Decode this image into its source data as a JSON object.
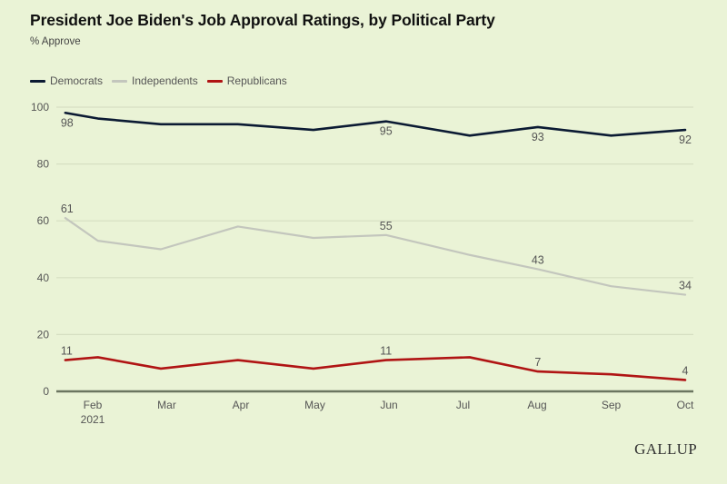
{
  "chart_data": {
    "type": "line",
    "title": "President Joe Biden's Job Approval Ratings, by Political Party",
    "subtitle": "% Approve",
    "xlabel": "",
    "ylabel": "% Approve",
    "ylim": [
      0,
      100
    ],
    "yticks": [
      0,
      20,
      40,
      60,
      80,
      100
    ],
    "grid": true,
    "legend_position": "top-left",
    "x_axis": {
      "unit": "month of 2021 (1 = Jan 1)",
      "range": [
        1.37,
        10.1
      ],
      "ticks": [
        {
          "pos": 2,
          "label": "Feb",
          "sublabel": "2021"
        },
        {
          "pos": 3,
          "label": "Mar",
          "sublabel": ""
        },
        {
          "pos": 4,
          "label": "Apr",
          "sublabel": ""
        },
        {
          "pos": 5,
          "label": "May",
          "sublabel": ""
        },
        {
          "pos": 6,
          "label": "Jun",
          "sublabel": ""
        },
        {
          "pos": 7,
          "label": "Jul",
          "sublabel": ""
        },
        {
          "pos": 8,
          "label": "Aug",
          "sublabel": ""
        },
        {
          "pos": 9,
          "label": "Sep",
          "sublabel": ""
        },
        {
          "pos": 10,
          "label": "Oct",
          "sublabel": ""
        }
      ]
    },
    "x": [
      1.63,
      2.07,
      2.92,
      3.96,
      4.98,
      5.96,
      7.09,
      8.01,
      9.0,
      10.0
    ],
    "series": [
      {
        "name": "Democrats",
        "color": "#0b1a33",
        "values": [
          98,
          96,
          94,
          94,
          92,
          95,
          90,
          93,
          90,
          92
        ],
        "labels": [
          {
            "index": 0,
            "text": "98",
            "position": "below"
          },
          {
            "index": 5,
            "text": "95",
            "position": "below"
          },
          {
            "index": 7,
            "text": "93",
            "position": "below"
          },
          {
            "index": 9,
            "text": "92",
            "position": "below"
          }
        ]
      },
      {
        "name": "Independents",
        "color": "#c3c6bd",
        "values": [
          61,
          53,
          50,
          58,
          54,
          55,
          48,
          43,
          37,
          34
        ],
        "labels": [
          {
            "index": 0,
            "text": "61",
            "position": "above"
          },
          {
            "index": 5,
            "text": "55",
            "position": "above"
          },
          {
            "index": 7,
            "text": "43",
            "position": "above"
          },
          {
            "index": 9,
            "text": "34",
            "position": "above"
          }
        ]
      },
      {
        "name": "Republicans",
        "color": "#b01414",
        "values": [
          11,
          12,
          8,
          11,
          8,
          11,
          12,
          7,
          6,
          4
        ],
        "labels": [
          {
            "index": 0,
            "text": "11",
            "position": "above"
          },
          {
            "index": 5,
            "text": "11",
            "position": "above"
          },
          {
            "index": 7,
            "text": "7",
            "position": "above"
          },
          {
            "index": 9,
            "text": "4",
            "position": "above"
          }
        ]
      }
    ]
  },
  "source_logo": "GALLUP",
  "colors": {
    "background": "#eaf3d6",
    "gridline": "#d6dfc2",
    "baseline": "#6b7560"
  }
}
